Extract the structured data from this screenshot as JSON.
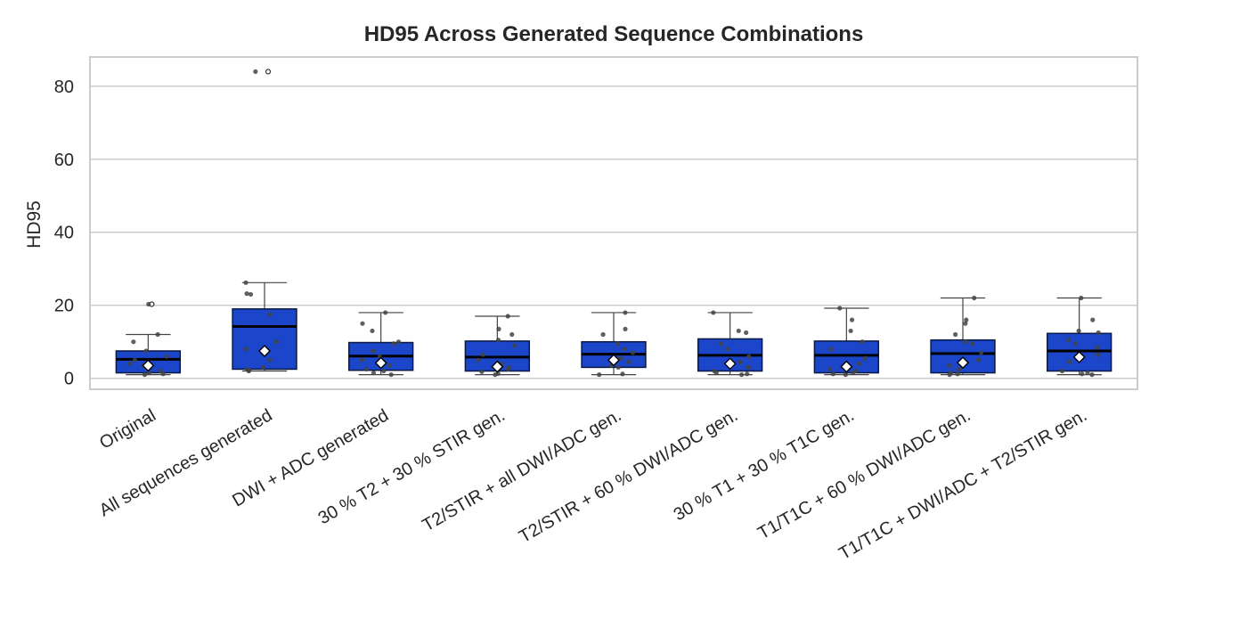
{
  "chart_data": {
    "type": "box",
    "title": "HD95 Across Generated Sequence Combinations",
    "xlabel": "",
    "ylabel": "HD95",
    "ylim": [
      -3,
      88
    ],
    "yticks": [
      0,
      20,
      40,
      60,
      80
    ],
    "grid": "horizontal",
    "colors": {
      "box": "#1c46c9",
      "median": "#000000",
      "mean_marker": "#ffffff",
      "points": "#444444",
      "grid": "#cccccc",
      "frame": "#cccccc"
    },
    "categories": [
      "Original",
      "All sequences generated",
      "DWI + ADC generated",
      "30 % T2 + 30 % STIR gen.",
      "T2/STIR + all DWI/ADC gen.",
      "T2/STIR + 60 % DWI/ADC gen.",
      "30 % T1 + 30 % T1C gen.",
      "T1/T1C + 60 % DWI/ADC gen.",
      "T1/T1C + DWI/ADC + T2/STIR gen."
    ],
    "boxes": [
      {
        "q1": 1.5,
        "median": 5.2,
        "q3": 7.5,
        "whisker_low": 1.0,
        "whisker_high": 12.0,
        "mean": 3.5,
        "outliers": [
          20.3
        ],
        "points": [
          1.0,
          1.2,
          1.5,
          2.0,
          3.0,
          3.5,
          4.0,
          5.0,
          6.0,
          7.5,
          10.0,
          12.0,
          20.3
        ]
      },
      {
        "q1": 2.5,
        "median": 14.2,
        "q3": 19.0,
        "whisker_low": 2.0,
        "whisker_high": 26.2,
        "mean": 7.5,
        "outliers": [
          84.0
        ],
        "points": [
          2.0,
          2.2,
          2.5,
          3.0,
          5.0,
          7.0,
          8.0,
          10.0,
          17.5,
          23.0,
          23.2,
          26.2,
          84.0
        ]
      },
      {
        "q1": 2.2,
        "median": 6.1,
        "q3": 9.8,
        "whisker_low": 1.0,
        "whisker_high": 18.0,
        "mean": 4.2,
        "outliers": [],
        "points": [
          1.0,
          1.5,
          2.0,
          2.5,
          3.5,
          4.5,
          5.0,
          6.0,
          7.5,
          9.5,
          10.0,
          13.0,
          15.0,
          18.0
        ]
      },
      {
        "q1": 2.0,
        "median": 5.8,
        "q3": 10.2,
        "whisker_low": 1.0,
        "whisker_high": 17.0,
        "mean": 3.2,
        "outliers": [],
        "points": [
          1.0,
          1.3,
          1.8,
          2.5,
          3.0,
          4.0,
          5.0,
          6.5,
          9.0,
          10.5,
          12.0,
          13.5,
          17.0
        ]
      },
      {
        "q1": 3.0,
        "median": 6.6,
        "q3": 10.0,
        "whisker_low": 1.0,
        "whisker_high": 18.0,
        "mean": 5.0,
        "outliers": [],
        "points": [
          1.0,
          1.2,
          3.0,
          3.5,
          4.5,
          5.5,
          7.0,
          8.0,
          9.5,
          12.0,
          13.5,
          18.0
        ]
      },
      {
        "q1": 2.0,
        "median": 6.3,
        "q3": 10.8,
        "whisker_low": 1.0,
        "whisker_high": 18.0,
        "mean": 4.0,
        "outliers": [],
        "points": [
          1.0,
          1.2,
          1.5,
          2.0,
          3.0,
          4.5,
          6.0,
          8.0,
          9.5,
          12.5,
          13.0,
          18.0
        ]
      },
      {
        "q1": 1.5,
        "median": 6.3,
        "q3": 10.2,
        "whisker_low": 1.0,
        "whisker_high": 19.2,
        "mean": 3.2,
        "outliers": [],
        "points": [
          1.0,
          1.2,
          1.5,
          2.0,
          2.5,
          4.0,
          5.5,
          8.0,
          10.0,
          13.0,
          16.0,
          19.2
        ]
      },
      {
        "q1": 1.5,
        "median": 6.8,
        "q3": 10.5,
        "whisker_low": 1.0,
        "whisker_high": 22.0,
        "mean": 4.3,
        "outliers": [],
        "points": [
          1.0,
          1.2,
          1.5,
          2.5,
          3.5,
          5.0,
          7.0,
          9.5,
          10.0,
          12.0,
          15.0,
          16.0,
          22.0
        ]
      },
      {
        "q1": 2.0,
        "median": 7.5,
        "q3": 12.3,
        "whisker_low": 1.0,
        "whisker_high": 22.0,
        "mean": 5.8,
        "outliers": [],
        "points": [
          1.0,
          1.2,
          1.5,
          2.0,
          4.5,
          6.5,
          8.5,
          9.5,
          10.5,
          12.5,
          13.0,
          16.0,
          22.0
        ]
      }
    ]
  }
}
